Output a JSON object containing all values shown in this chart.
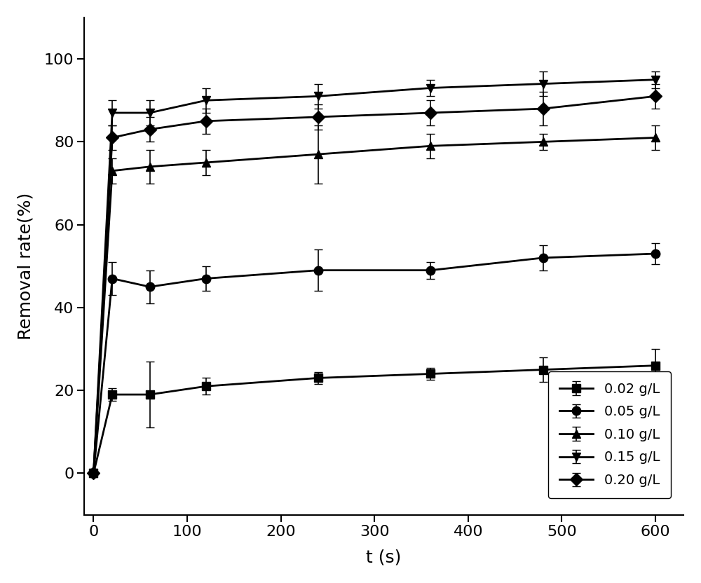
{
  "series": [
    {
      "label": "0.02 g/L",
      "marker": "s",
      "x": [
        0,
        20,
        60,
        120,
        240,
        360,
        480,
        600
      ],
      "y": [
        0,
        19,
        19,
        21,
        23,
        24,
        25,
        26
      ],
      "yerr": [
        0.3,
        1.5,
        8,
        2,
        1.5,
        1.5,
        3,
        4
      ]
    },
    {
      "label": "0.05 g/L",
      "marker": "o",
      "x": [
        0,
        20,
        60,
        120,
        240,
        360,
        480,
        600
      ],
      "y": [
        0,
        47,
        45,
        47,
        49,
        49,
        52,
        53
      ],
      "yerr": [
        0.3,
        4,
        4,
        3,
        5,
        2,
        3,
        2.5
      ]
    },
    {
      "label": "0.10 g/L",
      "marker": "^",
      "x": [
        0,
        20,
        60,
        120,
        240,
        360,
        480,
        600
      ],
      "y": [
        0,
        73,
        74,
        75,
        77,
        79,
        80,
        81
      ],
      "yerr": [
        0.3,
        3,
        4,
        3,
        7,
        3,
        2,
        3
      ]
    },
    {
      "label": "0.15 g/L",
      "marker": "v",
      "x": [
        0,
        20,
        60,
        120,
        240,
        360,
        480,
        600
      ],
      "y": [
        0,
        87,
        87,
        90,
        91,
        93,
        94,
        95
      ],
      "yerr": [
        0.3,
        3,
        3,
        3,
        3,
        2,
        3,
        2
      ]
    },
    {
      "label": "0.20 g/L",
      "marker": "D",
      "x": [
        0,
        20,
        60,
        120,
        240,
        360,
        480,
        600
      ],
      "y": [
        0,
        81,
        83,
        85,
        86,
        87,
        88,
        91
      ],
      "yerr": [
        0.3,
        3,
        3,
        3,
        3,
        3,
        4,
        3
      ]
    }
  ],
  "xlabel": "t (s)",
  "ylabel": "Removal rate(%)",
  "xlim": [
    -10,
    630
  ],
  "ylim": [
    -10,
    110
  ],
  "xticks": [
    0,
    100,
    200,
    300,
    400,
    500,
    600
  ],
  "yticks": [
    0,
    20,
    40,
    60,
    80,
    100
  ],
  "line_color": "black",
  "marker_size": 9,
  "line_width": 2.0,
  "capsize": 4,
  "elinewidth": 1.2,
  "fontsize_axis": 18,
  "fontsize_tick": 16,
  "fontsize_legend": 14
}
